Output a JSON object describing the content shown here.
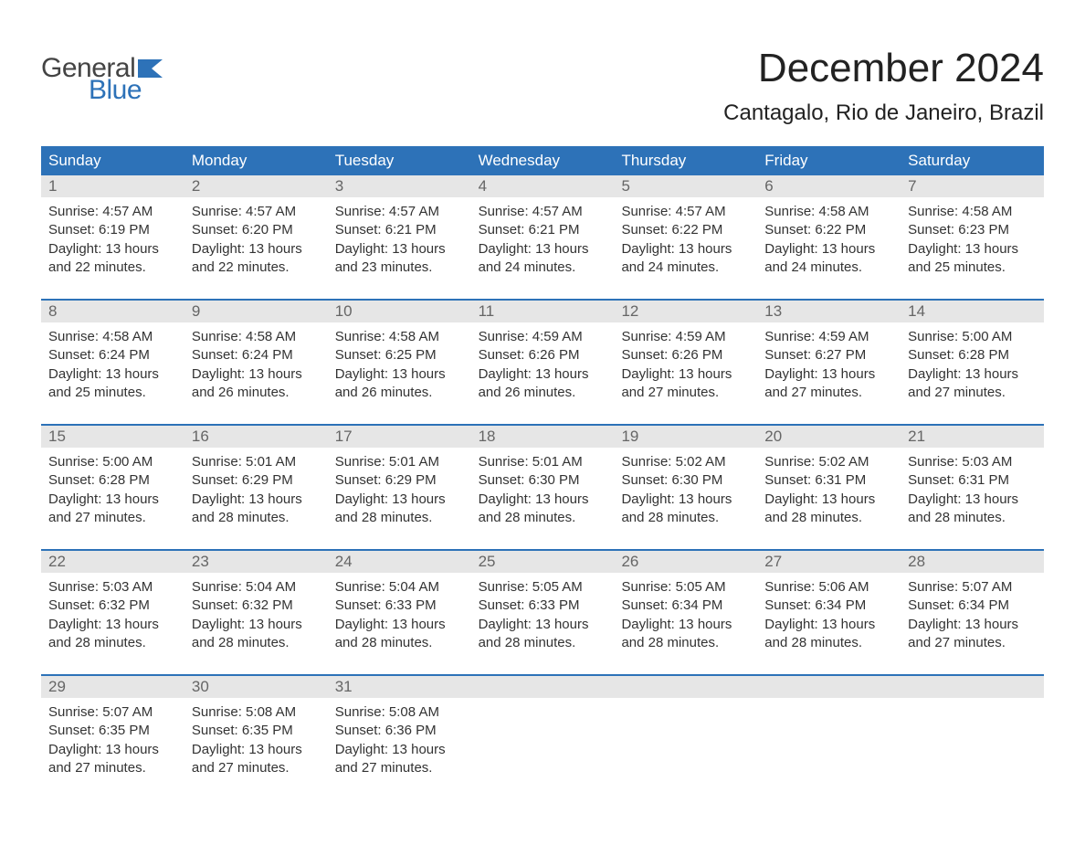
{
  "logo": {
    "text1": "General",
    "text2": "Blue",
    "icon_color": "#2d72b8"
  },
  "title": "December 2024",
  "location": "Cantagalo, Rio de Janeiro, Brazil",
  "colors": {
    "header_bg": "#2d72b8",
    "header_text": "#ffffff",
    "daynum_bg": "#e6e6e6",
    "daynum_text": "#666666",
    "body_text": "#333333",
    "week_border": "#2d72b8"
  },
  "day_names": [
    "Sunday",
    "Monday",
    "Tuesday",
    "Wednesday",
    "Thursday",
    "Friday",
    "Saturday"
  ],
  "weeks": [
    [
      {
        "n": "1",
        "sunrise": "Sunrise: 4:57 AM",
        "sunset": "Sunset: 6:19 PM",
        "daylight": "Daylight: 13 hours and 22 minutes."
      },
      {
        "n": "2",
        "sunrise": "Sunrise: 4:57 AM",
        "sunset": "Sunset: 6:20 PM",
        "daylight": "Daylight: 13 hours and 22 minutes."
      },
      {
        "n": "3",
        "sunrise": "Sunrise: 4:57 AM",
        "sunset": "Sunset: 6:21 PM",
        "daylight": "Daylight: 13 hours and 23 minutes."
      },
      {
        "n": "4",
        "sunrise": "Sunrise: 4:57 AM",
        "sunset": "Sunset: 6:21 PM",
        "daylight": "Daylight: 13 hours and 24 minutes."
      },
      {
        "n": "5",
        "sunrise": "Sunrise: 4:57 AM",
        "sunset": "Sunset: 6:22 PM",
        "daylight": "Daylight: 13 hours and 24 minutes."
      },
      {
        "n": "6",
        "sunrise": "Sunrise: 4:58 AM",
        "sunset": "Sunset: 6:22 PM",
        "daylight": "Daylight: 13 hours and 24 minutes."
      },
      {
        "n": "7",
        "sunrise": "Sunrise: 4:58 AM",
        "sunset": "Sunset: 6:23 PM",
        "daylight": "Daylight: 13 hours and 25 minutes."
      }
    ],
    [
      {
        "n": "8",
        "sunrise": "Sunrise: 4:58 AM",
        "sunset": "Sunset: 6:24 PM",
        "daylight": "Daylight: 13 hours and 25 minutes."
      },
      {
        "n": "9",
        "sunrise": "Sunrise: 4:58 AM",
        "sunset": "Sunset: 6:24 PM",
        "daylight": "Daylight: 13 hours and 26 minutes."
      },
      {
        "n": "10",
        "sunrise": "Sunrise: 4:58 AM",
        "sunset": "Sunset: 6:25 PM",
        "daylight": "Daylight: 13 hours and 26 minutes."
      },
      {
        "n": "11",
        "sunrise": "Sunrise: 4:59 AM",
        "sunset": "Sunset: 6:26 PM",
        "daylight": "Daylight: 13 hours and 26 minutes."
      },
      {
        "n": "12",
        "sunrise": "Sunrise: 4:59 AM",
        "sunset": "Sunset: 6:26 PM",
        "daylight": "Daylight: 13 hours and 27 minutes."
      },
      {
        "n": "13",
        "sunrise": "Sunrise: 4:59 AM",
        "sunset": "Sunset: 6:27 PM",
        "daylight": "Daylight: 13 hours and 27 minutes."
      },
      {
        "n": "14",
        "sunrise": "Sunrise: 5:00 AM",
        "sunset": "Sunset: 6:28 PM",
        "daylight": "Daylight: 13 hours and 27 minutes."
      }
    ],
    [
      {
        "n": "15",
        "sunrise": "Sunrise: 5:00 AM",
        "sunset": "Sunset: 6:28 PM",
        "daylight": "Daylight: 13 hours and 27 minutes."
      },
      {
        "n": "16",
        "sunrise": "Sunrise: 5:01 AM",
        "sunset": "Sunset: 6:29 PM",
        "daylight": "Daylight: 13 hours and 28 minutes."
      },
      {
        "n": "17",
        "sunrise": "Sunrise: 5:01 AM",
        "sunset": "Sunset: 6:29 PM",
        "daylight": "Daylight: 13 hours and 28 minutes."
      },
      {
        "n": "18",
        "sunrise": "Sunrise: 5:01 AM",
        "sunset": "Sunset: 6:30 PM",
        "daylight": "Daylight: 13 hours and 28 minutes."
      },
      {
        "n": "19",
        "sunrise": "Sunrise: 5:02 AM",
        "sunset": "Sunset: 6:30 PM",
        "daylight": "Daylight: 13 hours and 28 minutes."
      },
      {
        "n": "20",
        "sunrise": "Sunrise: 5:02 AM",
        "sunset": "Sunset: 6:31 PM",
        "daylight": "Daylight: 13 hours and 28 minutes."
      },
      {
        "n": "21",
        "sunrise": "Sunrise: 5:03 AM",
        "sunset": "Sunset: 6:31 PM",
        "daylight": "Daylight: 13 hours and 28 minutes."
      }
    ],
    [
      {
        "n": "22",
        "sunrise": "Sunrise: 5:03 AM",
        "sunset": "Sunset: 6:32 PM",
        "daylight": "Daylight: 13 hours and 28 minutes."
      },
      {
        "n": "23",
        "sunrise": "Sunrise: 5:04 AM",
        "sunset": "Sunset: 6:32 PM",
        "daylight": "Daylight: 13 hours and 28 minutes."
      },
      {
        "n": "24",
        "sunrise": "Sunrise: 5:04 AM",
        "sunset": "Sunset: 6:33 PM",
        "daylight": "Daylight: 13 hours and 28 minutes."
      },
      {
        "n": "25",
        "sunrise": "Sunrise: 5:05 AM",
        "sunset": "Sunset: 6:33 PM",
        "daylight": "Daylight: 13 hours and 28 minutes."
      },
      {
        "n": "26",
        "sunrise": "Sunrise: 5:05 AM",
        "sunset": "Sunset: 6:34 PM",
        "daylight": "Daylight: 13 hours and 28 minutes."
      },
      {
        "n": "27",
        "sunrise": "Sunrise: 5:06 AM",
        "sunset": "Sunset: 6:34 PM",
        "daylight": "Daylight: 13 hours and 28 minutes."
      },
      {
        "n": "28",
        "sunrise": "Sunrise: 5:07 AM",
        "sunset": "Sunset: 6:34 PM",
        "daylight": "Daylight: 13 hours and 27 minutes."
      }
    ],
    [
      {
        "n": "29",
        "sunrise": "Sunrise: 5:07 AM",
        "sunset": "Sunset: 6:35 PM",
        "daylight": "Daylight: 13 hours and 27 minutes."
      },
      {
        "n": "30",
        "sunrise": "Sunrise: 5:08 AM",
        "sunset": "Sunset: 6:35 PM",
        "daylight": "Daylight: 13 hours and 27 minutes."
      },
      {
        "n": "31",
        "sunrise": "Sunrise: 5:08 AM",
        "sunset": "Sunset: 6:36 PM",
        "daylight": "Daylight: 13 hours and 27 minutes."
      },
      null,
      null,
      null,
      null
    ]
  ]
}
